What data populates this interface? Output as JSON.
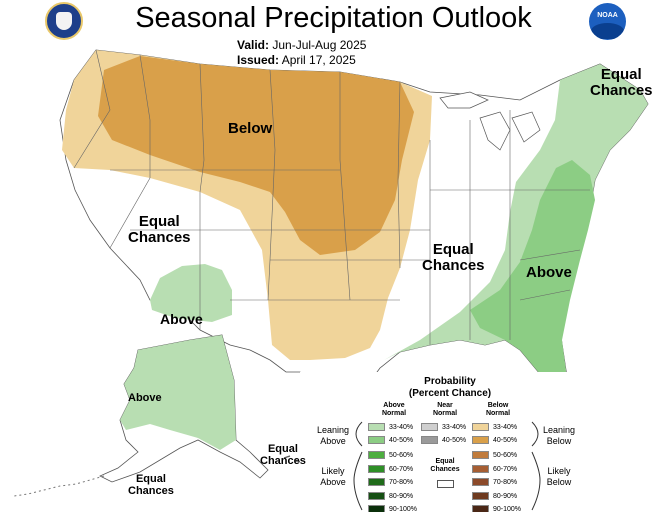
{
  "header": {
    "title": "Seasonal Precipitation Outlook",
    "valid_label": "Valid:",
    "valid_value": "Jun-Jul-Aug 2025",
    "issued_label": "Issued:",
    "issued_value": "April 17, 2025"
  },
  "logos": {
    "left_seal": "commerce-seal",
    "right_logo": "noaa-logo",
    "right_logo_text": "NOAA"
  },
  "colors": {
    "above_33_40": "#b8deb2",
    "above_40_50": "#8ccd84",
    "above_50_60": "#4dae3f",
    "above_60_70": "#2e8f27",
    "above_70_80": "#1f6b1a",
    "above_80_90": "#154f13",
    "above_90_100": "#0b300b",
    "near_33_40": "#cfcfcf",
    "near_40_50": "#9a9a9a",
    "below_33_40": "#f0d49a",
    "below_40_50": "#d9a04a",
    "below_50_60": "#c07b3c",
    "below_60_70": "#a65e33",
    "below_70_80": "#8c4a2a",
    "below_80_90": "#6e3a1f",
    "below_90_100": "#4a2716"
  },
  "map_labels": {
    "below": "Below",
    "equal_chances_west_1": "Equal",
    "equal_chances_west_2": "Chances",
    "above_southwest": "Above",
    "equal_chances_central_1": "Equal",
    "equal_chances_central_2": "Chances",
    "above_southeast": "Above",
    "equal_chances_northeast_1": "Equal",
    "equal_chances_northeast_2": "Chances",
    "above_alaska": "Above",
    "equal_chances_alaska_1": "Equal",
    "equal_chances_alaska_2": "Chances",
    "equal_chances_aleutian_1": "Equal",
    "equal_chances_aleutian_2": "Chances"
  },
  "legend": {
    "title_1": "Probability",
    "title_2": "(Percent Chance)",
    "col_above_1": "Above",
    "col_above_2": "Normal",
    "col_near_1": "Near",
    "col_near_2": "Normal",
    "col_below_1": "Below",
    "col_below_2": "Normal",
    "leaning_above_1": "Leaning",
    "leaning_above_2": "Above",
    "leaning_below_1": "Leaning",
    "leaning_below_2": "Below",
    "likely_above_1": "Likely",
    "likely_above_2": "Above",
    "likely_below_1": "Likely",
    "likely_below_2": "Below",
    "equal_chances_1": "Equal",
    "equal_chances_2": "Chances",
    "ranges": [
      "33-40%",
      "40-50%",
      "50-60%",
      "60-70%",
      "70-80%",
      "80-90%",
      "90-100%"
    ],
    "near_ranges": [
      "33-40%",
      "40-50%"
    ]
  }
}
